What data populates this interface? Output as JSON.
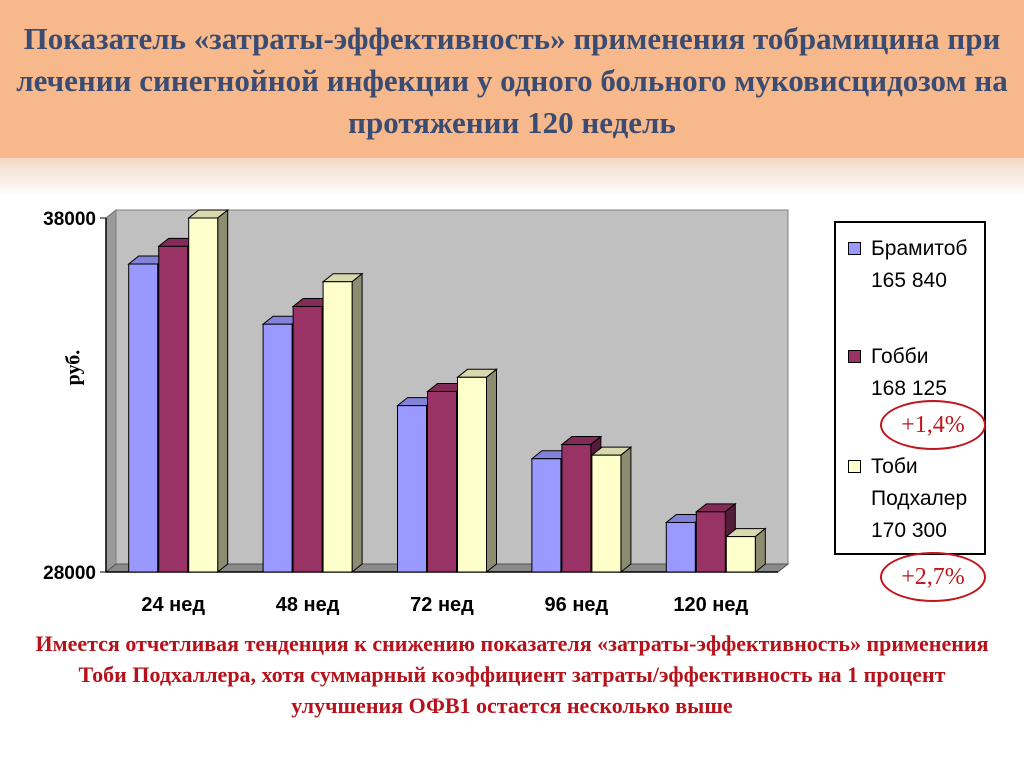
{
  "header": {
    "title": "Показатель «затраты-эффективность» применения тобрамицина при лечении синегнойной инфекции у одного больного муковисцидозом на протяжении 120 недель"
  },
  "chart_data": {
    "type": "bar",
    "categories": [
      "24 нед",
      "48 нед",
      "72 нед",
      "96 нед",
      "120 нед"
    ],
    "ylabel": "руб.",
    "ylim": [
      28000,
      38000
    ],
    "yticks": [
      "28000",
      "38000"
    ],
    "grid": false,
    "legend_position": "right",
    "series": [
      {
        "name": "Брамитоб",
        "value_label": "165 840",
        "color": "#9999ff",
        "values": [
          36700,
          35000,
          32700,
          31200,
          29400
        ]
      },
      {
        "name": "Гобби",
        "value_label": "168 125",
        "color": "#993366",
        "values": [
          37200,
          35500,
          33100,
          31600,
          29700
        ]
      },
      {
        "name": "Тоби Подхалер",
        "value_label": "170 300",
        "color": "#ffffcc",
        "values": [
          38000,
          36200,
          33500,
          31300,
          29000
        ]
      }
    ]
  },
  "legend": {
    "items": [
      {
        "line1": "Брамитоб",
        "line2": "165 840",
        "color": "#9999ff"
      },
      {
        "line1": "Гобби",
        "line2": "168 125",
        "color": "#993366"
      },
      {
        "line1": "Тоби",
        "line2": "Подхалер",
        "line3": "170 300",
        "color": "#ffffcc"
      }
    ]
  },
  "badges": {
    "gobbi": "+1,4%",
    "tobi": "+2,7%"
  },
  "footer": {
    "text": "Имеется отчетливая тенденция к снижению показателя «затраты-эффективность» применения Тоби Подхаллера, хотя суммарный коэффициент затраты/эффективность на 1 процент улучшения ОФВ1 остается несколько выше"
  },
  "colors": {
    "header_bg": "#f7b98c",
    "title": "#3b4c73",
    "footer": "#b5121b",
    "plot_bg": "#c0c0c0"
  }
}
